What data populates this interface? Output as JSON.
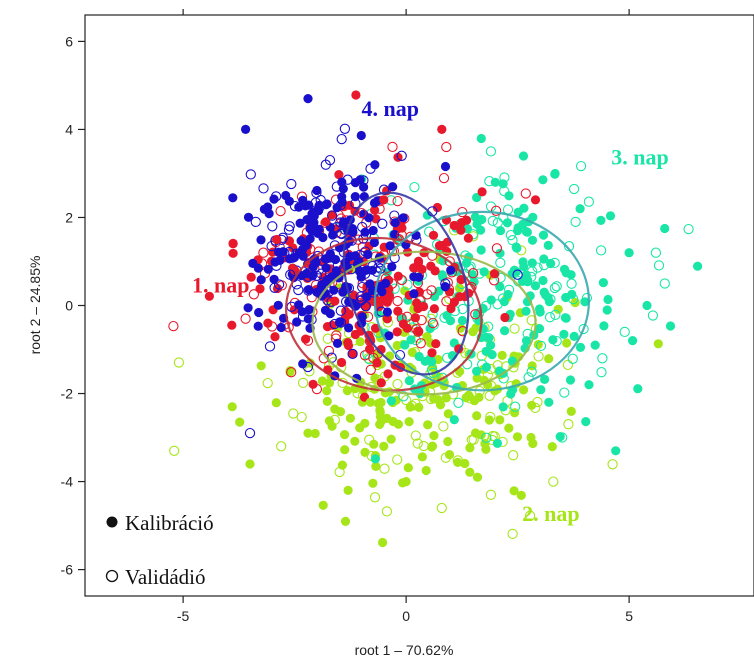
{
  "chart_data": {
    "type": "scatter",
    "xlabel": "root 1 – 70.62%",
    "ylabel": "root 2 – 24.85%",
    "xlim": [
      -7.2,
      7.8
    ],
    "ylim": [
      -6.6,
      6.6
    ],
    "xticks": [
      -5,
      0,
      5
    ],
    "yticks": [
      -6,
      -4,
      -2,
      0,
      2,
      4,
      6
    ],
    "xtick_labels": [
      "-5",
      "0",
      "5"
    ],
    "ytick_labels": [
      "-6",
      "-4",
      "-2",
      "0",
      "2",
      "4",
      "6"
    ],
    "grid": false,
    "legend": {
      "position": "bottom-left",
      "entries": [
        {
          "marker": "filled-circle",
          "label": "Kalibráció"
        },
        {
          "marker": "open-circle",
          "label": "Validádió"
        }
      ]
    },
    "series": [
      {
        "name": "1. nap",
        "color": "#e8192c",
        "center": [
          -0.8,
          0.5
        ],
        "spread": [
          1.35,
          1.1
        ],
        "ellipse": {
          "center": [
            -0.5,
            -0.2
          ],
          "rx": 2.2,
          "ry": 1.7,
          "angle": 8
        },
        "sample_points": {
          "kalibracio": [
            [
              -2.5,
              0.8
            ],
            [
              -1.8,
              1.9
            ],
            [
              -0.5,
              2.4
            ],
            [
              0.8,
              4.0
            ],
            [
              -3.1,
              -0.4
            ],
            [
              -1.2,
              -1.1
            ],
            [
              0.4,
              1.2
            ],
            [
              -2.9,
              1.5
            ],
            [
              1.2,
              0.2
            ],
            [
              -0.2,
              -0.6
            ],
            [
              2.9,
              2.4
            ],
            [
              -1.6,
              0.1
            ]
          ],
          "validacio": [
            [
              -3.6,
              -0.3
            ],
            [
              -2.2,
              -0.8
            ],
            [
              -0.1,
              1.6
            ],
            [
              0.9,
              3.6
            ],
            [
              -1.0,
              2.1
            ],
            [
              -3.2,
              1.2
            ],
            [
              0.6,
              -0.4
            ],
            [
              -2.0,
              -1.9
            ]
          ]
        }
      },
      {
        "name": "2. nap",
        "color": "#a6e619",
        "center": [
          0.5,
          -1.8
        ],
        "spread": [
          1.6,
          1.2
        ],
        "ellipse": {
          "center": [
            0.4,
            -0.4
          ],
          "rx": 2.5,
          "ry": 1.6,
          "angle": 0
        },
        "sample_points": {
          "kalibracio": [
            [
              -3.9,
              -2.3
            ],
            [
              -2.2,
              -2.9
            ],
            [
              -0.5,
              -3.2
            ],
            [
              1.6,
              -3.9
            ],
            [
              -1.3,
              -4.2
            ],
            [
              0.9,
              -2.1
            ],
            [
              2.1,
              -2.6
            ],
            [
              -3.5,
              -3.6
            ],
            [
              1.2,
              -1.5
            ],
            [
              -0.8,
              -2.2
            ],
            [
              2.8,
              -3.0
            ],
            [
              0.0,
              -4.0
            ]
          ],
          "validacio": [
            [
              -5.2,
              -3.3
            ],
            [
              -2.8,
              -3.2
            ],
            [
              0.8,
              -4.6
            ],
            [
              1.9,
              -4.3
            ],
            [
              -1.6,
              -2.6
            ],
            [
              3.3,
              -4.0
            ],
            [
              2.4,
              -3.4
            ],
            [
              -0.2,
              -3.5
            ]
          ]
        }
      },
      {
        "name": "3. nap",
        "color": "#19e6a6",
        "center": [
          2.0,
          0.3
        ],
        "spread": [
          1.5,
          1.4
        ],
        "ellipse": {
          "center": [
            1.7,
            0.1
          ],
          "rx": 2.4,
          "ry": 2.0,
          "angle": 0
        },
        "sample_points": {
          "kalibracio": [
            [
              2.5,
              1.7
            ],
            [
              3.7,
              0.7
            ],
            [
              4.1,
              -1.8
            ],
            [
              2.0,
              2.8
            ],
            [
              5.4,
              0.0
            ],
            [
              4.7,
              -3.3
            ],
            [
              3.2,
              -2.2
            ],
            [
              1.4,
              1.1
            ],
            [
              2.7,
              -0.8
            ],
            [
              5.0,
              1.2
            ],
            [
              3.9,
              2.2
            ],
            [
              1.8,
              -1.4
            ]
          ],
          "validacio": [
            [
              5.8,
              0.5
            ],
            [
              4.4,
              -1.2
            ],
            [
              3.5,
              -3.0
            ],
            [
              2.2,
              2.6
            ],
            [
              5.6,
              1.2
            ],
            [
              3.8,
              1.9
            ],
            [
              4.9,
              -0.6
            ],
            [
              1.9,
              3.5
            ]
          ]
        }
      },
      {
        "name": "4. nap",
        "color": "#1a10cc",
        "center": [
          -1.6,
          1.2
        ],
        "spread": [
          0.85,
          1.05
        ],
        "ellipse": {
          "center": [
            0.0,
            0.5
          ],
          "rx": 1.3,
          "ry": 2.1,
          "angle": -18
        },
        "sample_points": {
          "kalibracio": [
            [
              -2.2,
              4.7
            ],
            [
              -3.6,
              4.0
            ],
            [
              -2.7,
              2.5
            ],
            [
              -1.4,
              1.9
            ],
            [
              -0.7,
              3.2
            ],
            [
              -2.0,
              0.3
            ],
            [
              -1.0,
              -0.4
            ],
            [
              -2.4,
              1.2
            ],
            [
              -0.3,
              2.7
            ],
            [
              -1.6,
              -1.6
            ],
            [
              1.0,
              0.8
            ],
            [
              -2.8,
              -0.5
            ]
          ],
          "validacio": [
            [
              -3.5,
              -2.9
            ],
            [
              -1.8,
              3.2
            ],
            [
              -2.6,
              0.7
            ],
            [
              -0.9,
              1.6
            ],
            [
              -1.2,
              -1.1
            ],
            [
              -3.0,
              1.8
            ],
            [
              -0.1,
              3.4
            ],
            [
              2.5,
              0.7
            ]
          ]
        }
      }
    ],
    "annotations": [
      {
        "text": "1. nap",
        "x": -4.8,
        "y": 0.3,
        "color": "#e8192c"
      },
      {
        "text": "2. nap",
        "x": 2.6,
        "y": -4.9,
        "color": "#a6e619"
      },
      {
        "text": "3. nap",
        "x": 4.6,
        "y": 3.2,
        "color": "#19e6a6"
      },
      {
        "text": "4. nap",
        "x": -1.0,
        "y": 4.3,
        "color": "#1a10cc"
      }
    ]
  }
}
